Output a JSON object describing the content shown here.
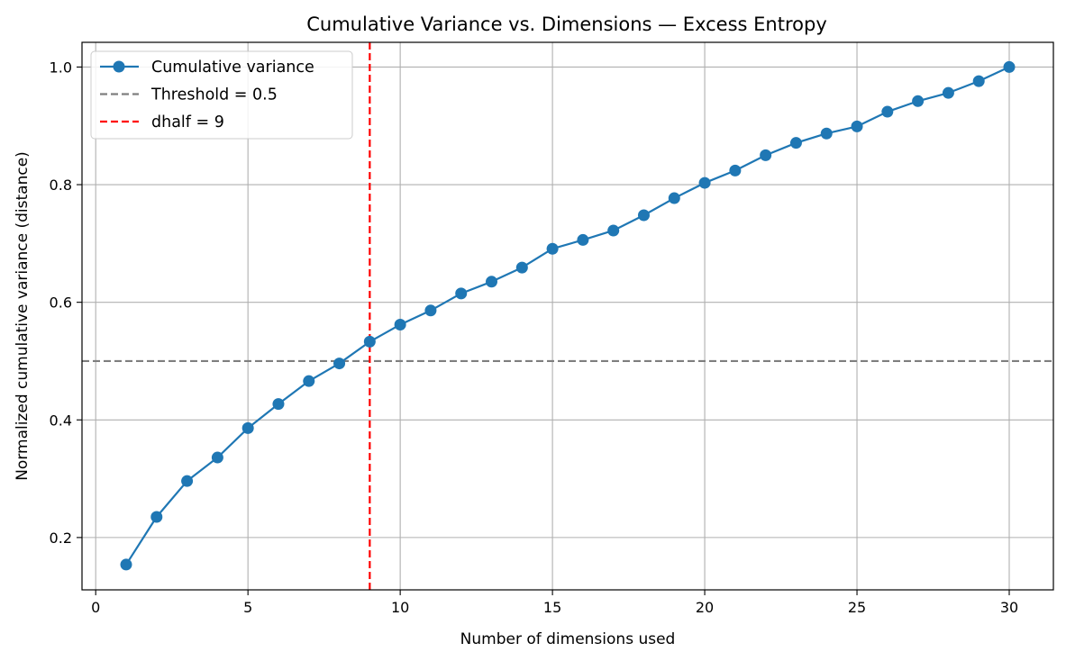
{
  "chart_data": {
    "type": "line",
    "title": "Cumulative Variance vs. Dimensions — Excess Entropy",
    "xlabel": "Number of dimensions used",
    "ylabel": "Normalized cumulative variance (distance)",
    "xlim": [
      -0.45,
      31.45
    ],
    "ylim": [
      0.111,
      1.042
    ],
    "xticks": [
      0,
      5,
      10,
      15,
      20,
      25,
      30
    ],
    "xtick_labels": [
      "0",
      "5",
      "10",
      "15",
      "20",
      "25",
      "30"
    ],
    "yticks": [
      0.2,
      0.4,
      0.6,
      0.8,
      1.0
    ],
    "ytick_labels": [
      "0.2",
      "0.4",
      "0.6",
      "0.8",
      "1.0"
    ],
    "grid": true,
    "legend_position": "top-left",
    "x": [
      1,
      2,
      3,
      4,
      5,
      6,
      7,
      8,
      9,
      10,
      11,
      12,
      13,
      14,
      15,
      16,
      17,
      18,
      19,
      20,
      21,
      22,
      23,
      24,
      25,
      26,
      27,
      28,
      29,
      30
    ],
    "series": [
      {
        "name": "Cumulative variance",
        "color": "#1f77b4",
        "style": "solid-with-circle-markers",
        "values": [
          0.154,
          0.235,
          0.296,
          0.336,
          0.386,
          0.427,
          0.466,
          0.496,
          0.533,
          0.562,
          0.586,
          0.615,
          0.635,
          0.659,
          0.691,
          0.706,
          0.722,
          0.748,
          0.777,
          0.803,
          0.824,
          0.85,
          0.871,
          0.887,
          0.899,
          0.924,
          0.942,
          0.956,
          0.976,
          1.0
        ]
      }
    ],
    "reference_lines": [
      {
        "name": "Threshold = 0.5",
        "orientation": "horizontal",
        "value": 0.5,
        "color": "#7f7f7f",
        "style": "dashed"
      },
      {
        "name": "dhalf = 9",
        "orientation": "vertical",
        "value": 9,
        "color": "#ff0000",
        "style": "dashed"
      }
    ]
  }
}
